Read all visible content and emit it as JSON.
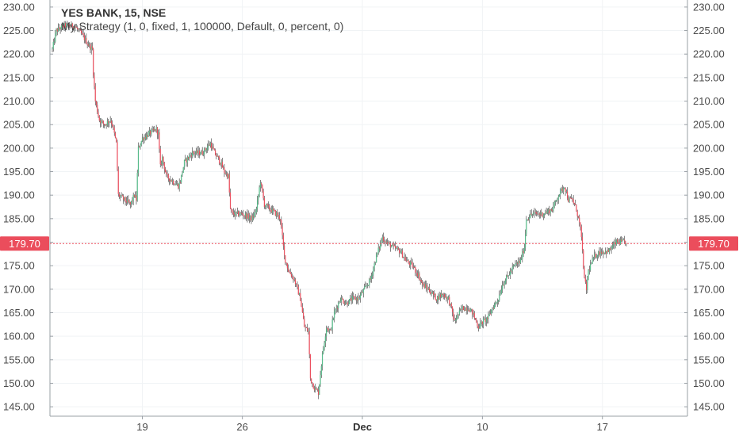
{
  "header": {
    "title": "YES BANK, 15, NSE",
    "strategy": "My Strategy (1, 0, fixed, 1, 100000, Default, 0, percent, 0)"
  },
  "colors": {
    "up": "#53b987",
    "down": "#eb4d5c",
    "wick": "#333333",
    "price_tag": "#eb4d5c",
    "price_line": "#eb4d5c",
    "axis_text": "#4a4a4a",
    "frame": "#9aa0a6"
  },
  "chart_data": {
    "type": "candlestick",
    "symbol": "YES BANK",
    "interval": "15",
    "exchange": "NSE",
    "last_price": 179.7,
    "last_price_label": "179.70",
    "y_ticks": [
      "145.00",
      "150.00",
      "155.00",
      "160.00",
      "165.00",
      "170.00",
      "175.00",
      "180.00",
      "185.00",
      "190.00",
      "195.00",
      "200.00",
      "205.00",
      "210.00",
      "215.00",
      "220.00",
      "225.00",
      "230.00"
    ],
    "y_tick_values": [
      145,
      150,
      155,
      160,
      165,
      170,
      175,
      180,
      185,
      190,
      195,
      200,
      205,
      210,
      215,
      220,
      225,
      230
    ],
    "ylim": [
      143,
      231.5
    ],
    "x_labels": [
      {
        "label": "19",
        "i": 90,
        "bold": false
      },
      {
        "label": "26",
        "i": 190,
        "bold": false
      },
      {
        "label": "Dec",
        "i": 310,
        "bold": true
      },
      {
        "label": "10",
        "i": 430,
        "bold": false
      },
      {
        "label": "17",
        "i": 550,
        "bold": false
      }
    ],
    "bars": 575,
    "path_anchors": [
      [
        0,
        221
      ],
      [
        4,
        225
      ],
      [
        12,
        226
      ],
      [
        22,
        226
      ],
      [
        30,
        224
      ],
      [
        36,
        222
      ],
      [
        40,
        221
      ],
      [
        41,
        216
      ],
      [
        43,
        210
      ],
      [
        47,
        206
      ],
      [
        52,
        205
      ],
      [
        58,
        206
      ],
      [
        60,
        205
      ],
      [
        64,
        201
      ],
      [
        66,
        190
      ],
      [
        72,
        189
      ],
      [
        78,
        188
      ],
      [
        82,
        190
      ],
      [
        84,
        189
      ],
      [
        86,
        200
      ],
      [
        90,
        202
      ],
      [
        96,
        203
      ],
      [
        104,
        204
      ],
      [
        106,
        203
      ],
      [
        108,
        196
      ],
      [
        110,
        198
      ],
      [
        114,
        194
      ],
      [
        120,
        193
      ],
      [
        126,
        192
      ],
      [
        128,
        193
      ],
      [
        132,
        197
      ],
      [
        140,
        199
      ],
      [
        150,
        199
      ],
      [
        158,
        201
      ],
      [
        162,
        199
      ],
      [
        168,
        197
      ],
      [
        172,
        195
      ],
      [
        176,
        194
      ],
      [
        178,
        187
      ],
      [
        180,
        186
      ],
      [
        190,
        186
      ],
      [
        200,
        185
      ],
      [
        204,
        187
      ],
      [
        208,
        193
      ],
      [
        212,
        188
      ],
      [
        218,
        187
      ],
      [
        224,
        186
      ],
      [
        228,
        185
      ],
      [
        232,
        177
      ],
      [
        236,
        174
      ],
      [
        242,
        172
      ],
      [
        248,
        168
      ],
      [
        252,
        162
      ],
      [
        256,
        161
      ],
      [
        258,
        151
      ],
      [
        262,
        149
      ],
      [
        266,
        148
      ],
      [
        270,
        156
      ],
      [
        274,
        162
      ],
      [
        278,
        161
      ],
      [
        282,
        165
      ],
      [
        288,
        168
      ],
      [
        294,
        167
      ],
      [
        300,
        168
      ],
      [
        306,
        168
      ],
      [
        312,
        170
      ],
      [
        318,
        172
      ],
      [
        324,
        177
      ],
      [
        330,
        181
      ],
      [
        334,
        180
      ],
      [
        340,
        179
      ],
      [
        348,
        178
      ],
      [
        354,
        176
      ],
      [
        360,
        175
      ],
      [
        366,
        173
      ],
      [
        370,
        171
      ],
      [
        376,
        170
      ],
      [
        384,
        168
      ],
      [
        390,
        169
      ],
      [
        396,
        168
      ],
      [
        400,
        165
      ],
      [
        402,
        163
      ],
      [
        404,
        164
      ],
      [
        410,
        166
      ],
      [
        416,
        166
      ],
      [
        420,
        165
      ],
      [
        424,
        163
      ],
      [
        426,
        162
      ],
      [
        430,
        163
      ],
      [
        436,
        164
      ],
      [
        440,
        166
      ],
      [
        446,
        168
      ],
      [
        450,
        171
      ],
      [
        456,
        173
      ],
      [
        462,
        175
      ],
      [
        468,
        176
      ],
      [
        472,
        179
      ],
      [
        474,
        185
      ],
      [
        480,
        186
      ],
      [
        490,
        186
      ],
      [
        500,
        187
      ],
      [
        506,
        190
      ],
      [
        512,
        192
      ],
      [
        516,
        189
      ],
      [
        520,
        189
      ],
      [
        524,
        187
      ],
      [
        528,
        183
      ],
      [
        530,
        178
      ],
      [
        532,
        172
      ],
      [
        534,
        170
      ],
      [
        536,
        174
      ],
      [
        542,
        177
      ],
      [
        548,
        178
      ],
      [
        556,
        178
      ],
      [
        560,
        179
      ],
      [
        564,
        180
      ],
      [
        570,
        180
      ]
    ]
  }
}
